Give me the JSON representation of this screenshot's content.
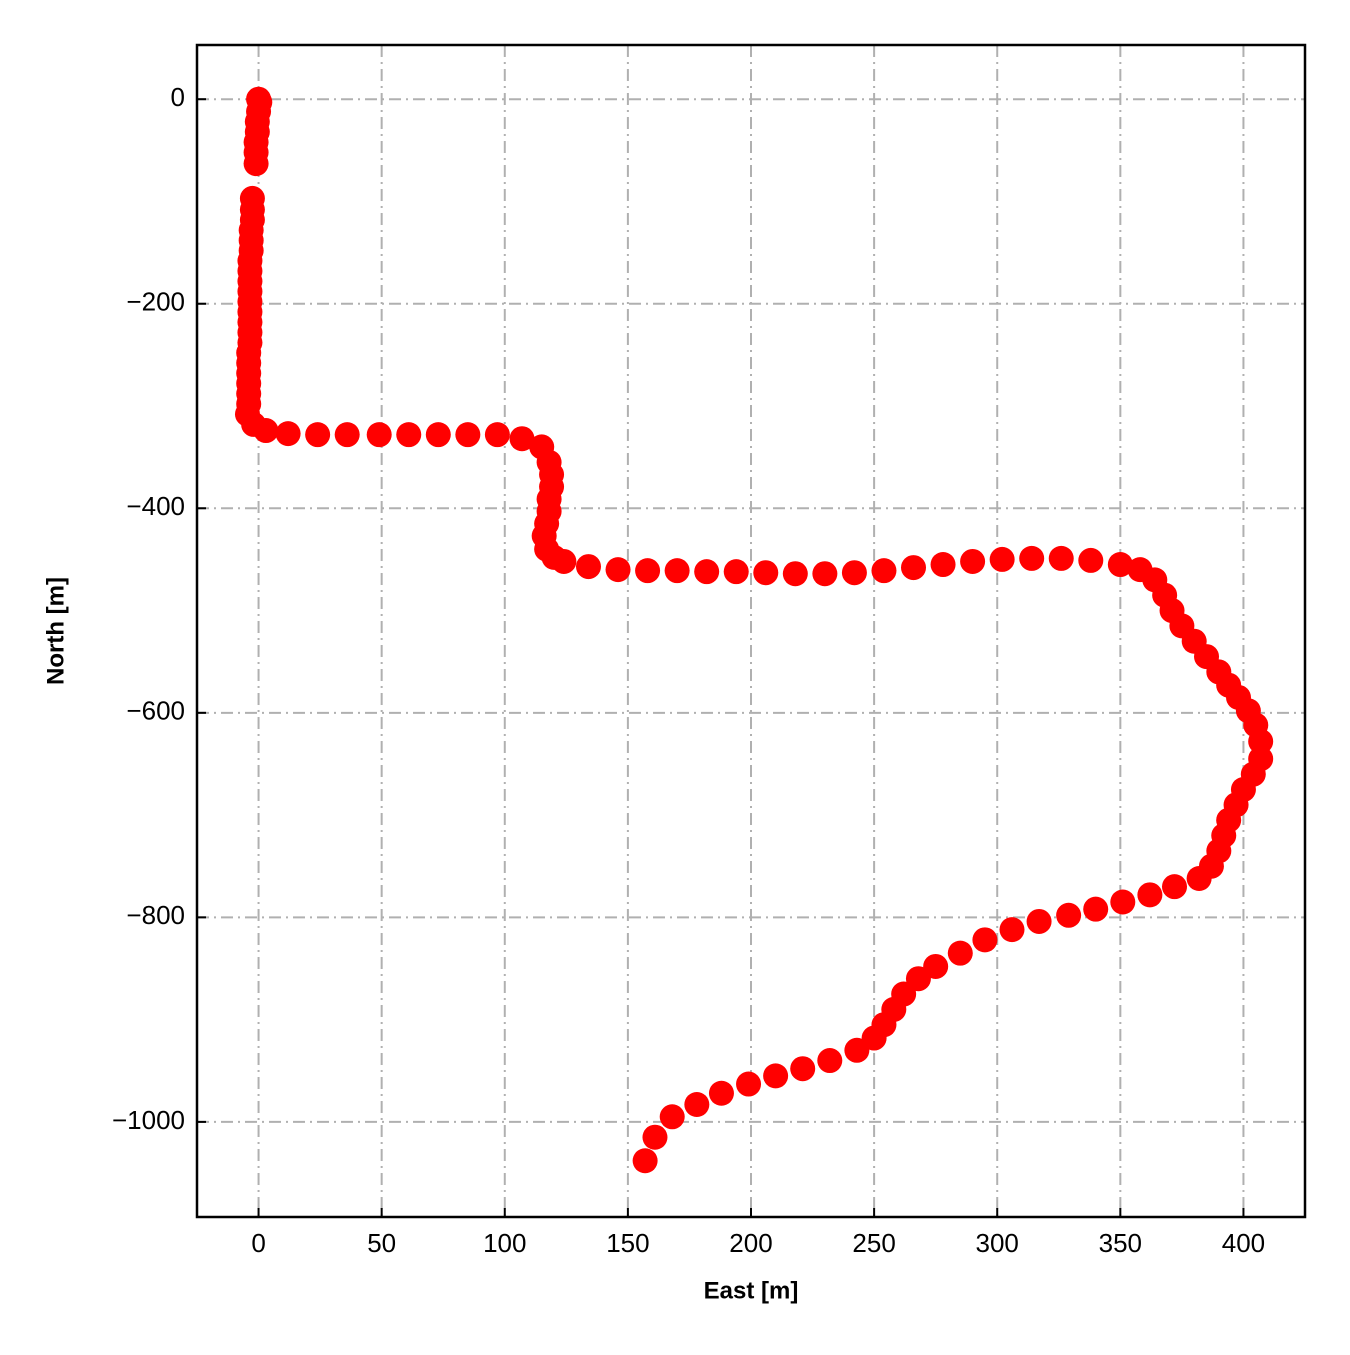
{
  "chart_data": {
    "type": "scatter",
    "xlabel": "East [m]",
    "ylabel": "North [m]",
    "color": "#ff0000",
    "grid": true,
    "xlim": [
      -25,
      425
    ],
    "ylim": [
      -1093,
      53
    ],
    "xticks": [
      0,
      50,
      100,
      150,
      200,
      250,
      300,
      350,
      400
    ],
    "yticks": [
      {
        "value": -1000,
        "label": "−1000"
      },
      {
        "value": -800,
        "label": "−800"
      },
      {
        "value": -600,
        "label": "−600"
      },
      {
        "value": -400,
        "label": "−400"
      },
      {
        "value": -200,
        "label": "−200"
      },
      0
    ],
    "x": [
      0,
      0.5,
      0,
      -0.5,
      -0.5,
      -1,
      -1,
      -1,
      -2.5,
      -2.5,
      -2.5,
      -3,
      -3,
      -3,
      -3.5,
      -3.5,
      -3.5,
      -3.5,
      -3.5,
      -3.5,
      -3.5,
      -3.5,
      -3.5,
      -4,
      -4,
      -4,
      -4,
      -4,
      -4,
      -4.5,
      -2,
      3,
      12,
      24,
      36,
      49,
      61,
      73,
      85,
      97,
      107,
      115,
      118,
      119,
      119,
      118,
      118,
      117,
      116,
      117,
      120,
      124,
      134,
      146,
      158,
      170,
      182,
      194,
      206,
      218,
      230,
      242,
      254,
      266,
      278,
      290,
      302,
      314,
      326,
      338,
      350,
      358,
      364,
      368,
      371,
      375,
      380,
      385,
      390,
      394,
      398,
      402,
      405,
      407,
      407,
      404,
      400,
      397,
      394,
      392,
      390,
      387,
      382,
      372,
      362,
      351,
      340,
      329,
      317,
      306,
      295,
      285,
      275,
      268,
      262,
      258,
      254,
      250,
      243,
      232,
      221,
      210,
      199,
      188,
      178,
      168,
      161,
      157
    ],
    "y": [
      0,
      -3,
      -12,
      -22,
      -32,
      -42,
      -52,
      -63,
      -97,
      -108,
      -118,
      -128,
      -138,
      -148,
      -158,
      -168,
      -178,
      -188,
      -198,
      -208,
      -218,
      -228,
      -238,
      -248,
      -258,
      -268,
      -278,
      -288,
      -298,
      -308,
      -318,
      -324,
      -327,
      -328,
      -328,
      -328,
      -328,
      -328,
      -328,
      -328,
      -332,
      -340,
      -355,
      -367,
      -379,
      -391,
      -403,
      -415,
      -427,
      -440,
      -448,
      -452,
      -457,
      -460,
      -461,
      -461,
      -462,
      -462,
      -463,
      -464,
      -464,
      -463,
      -461,
      -458,
      -455,
      -452,
      -450,
      -449,
      -449,
      -451,
      -455,
      -460,
      -470,
      -485,
      -500,
      -515,
      -530,
      -545,
      -560,
      -573,
      -585,
      -598,
      -612,
      -628,
      -645,
      -660,
      -675,
      -690,
      -705,
      -720,
      -735,
      -750,
      -762,
      -770,
      -778,
      -785,
      -792,
      -798,
      -804,
      -812,
      -822,
      -835,
      -848,
      -860,
      -875,
      -890,
      -905,
      -918,
      -930,
      -940,
      -948,
      -955,
      -963,
      -972,
      -983,
      -995,
      -1015,
      -1038
    ]
  }
}
